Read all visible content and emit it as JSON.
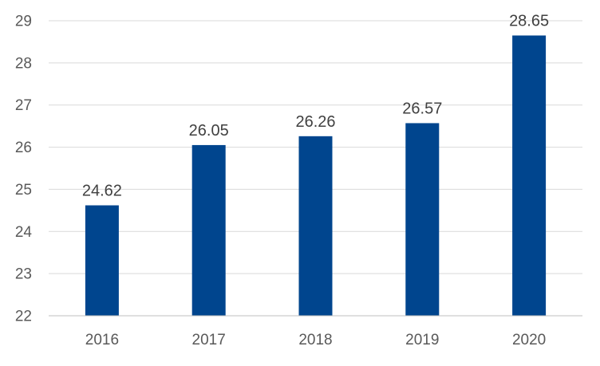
{
  "chart_data": {
    "type": "bar",
    "categories": [
      "2016",
      "2017",
      "2018",
      "2019",
      "2020"
    ],
    "values": [
      24.62,
      26.05,
      26.26,
      26.57,
      28.65
    ],
    "data_labels": [
      "24.62",
      "26.05",
      "26.26",
      "26.57",
      "28.65"
    ],
    "y_ticks": [
      "22",
      "23",
      "24",
      "25",
      "26",
      "27",
      "28",
      "29"
    ],
    "ylim": [
      22,
      29
    ],
    "grid": true,
    "legend": "none",
    "colors": {
      "bar": "#00458e",
      "grid": "#d9d9d9",
      "axis": "#bfbfbf",
      "tick_text": "#595959",
      "label_text": "#404040"
    }
  }
}
